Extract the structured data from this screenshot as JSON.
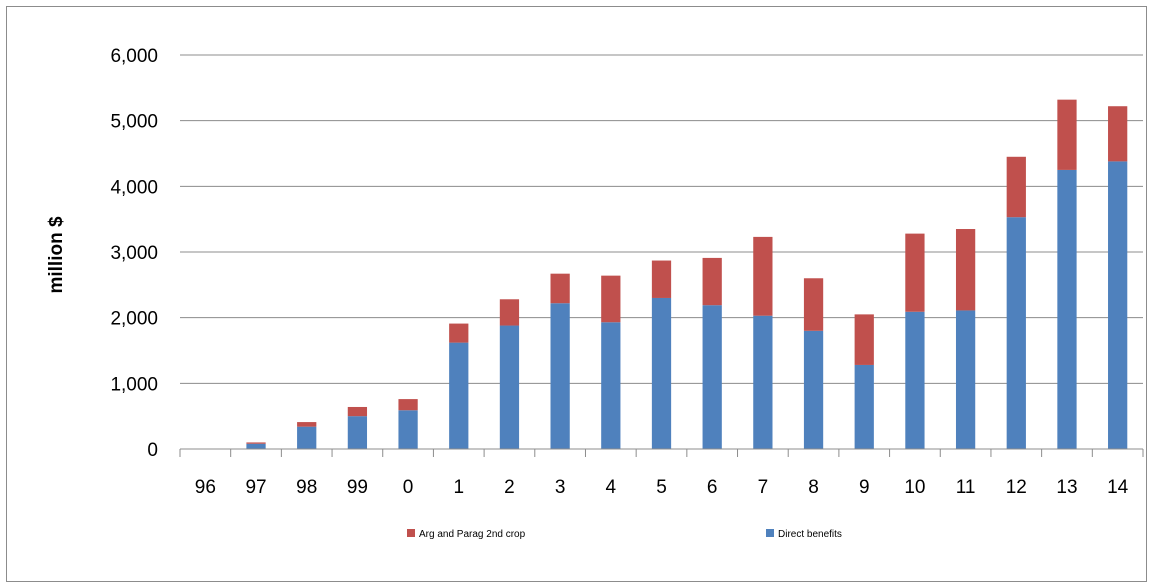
{
  "chart_data": {
    "type": "bar",
    "stacked": true,
    "title": "",
    "xlabel": "",
    "ylabel": "million $",
    "ylim": [
      0,
      6000
    ],
    "yticks": [
      "0",
      "1,000",
      "2,000",
      "3,000",
      "4,000",
      "5,000",
      "6,000"
    ],
    "ytick_values": [
      0,
      1000,
      2000,
      3000,
      4000,
      5000,
      6000
    ],
    "categories": [
      "96",
      "97",
      "98",
      "99",
      "0",
      "1",
      "2",
      "3",
      "4",
      "5",
      "6",
      "7",
      "8",
      "9",
      "10",
      "11",
      "12",
      "13",
      "14"
    ],
    "series": [
      {
        "name": "Direct benefits",
        "color": "#4f81bd",
        "values": [
          0,
          80,
          340,
          500,
          590,
          1620,
          1880,
          2220,
          1930,
          2300,
          2190,
          2030,
          1800,
          1280,
          2090,
          2110,
          3530,
          4250,
          4380
        ]
      },
      {
        "name": "Arg and Parag 2nd crop",
        "color": "#c0504d",
        "values": [
          0,
          20,
          70,
          140,
          170,
          290,
          400,
          450,
          710,
          570,
          720,
          1200,
          800,
          770,
          1190,
          1240,
          920,
          1070,
          840
        ]
      }
    ],
    "grid": true,
    "legend_placement": "bottom"
  }
}
